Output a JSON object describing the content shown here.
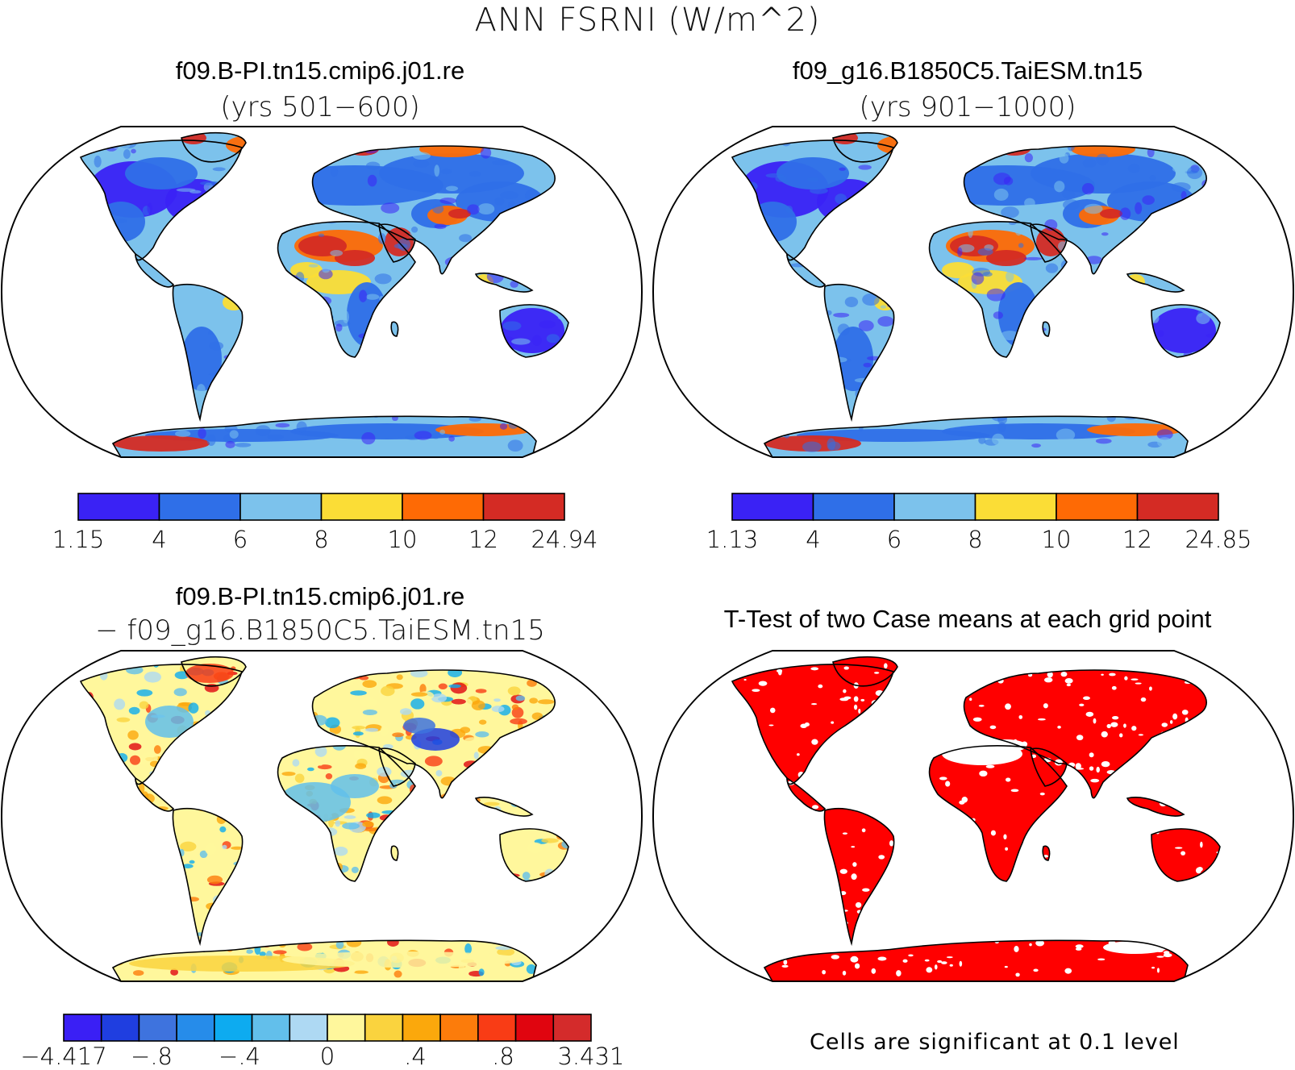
{
  "title": "ANN FSRNI (W/m^2)",
  "panels": [
    {
      "id": "case1",
      "title": "f09.B-PI.tn15.cmip6.j01.re",
      "subtitle": "(yrs 501−600)"
    },
    {
      "id": "case2",
      "title": "f09_g16.B1850C5.TaiESM.tn15",
      "subtitle": "(yrs 901−1000)"
    },
    {
      "id": "diff",
      "title": "f09.B-PI.tn15.cmip6.j01.re",
      "subtitle": "− f09_g16.B1850C5.TaiESM.tn15"
    },
    {
      "id": "ttest",
      "title": "T-Test of two Case means at each grid point",
      "subtitle": ""
    }
  ],
  "colorbars": [
    {
      "id": "cb1",
      "labels": [
        "1.15",
        "4",
        "6",
        "8",
        "10",
        "12",
        "24.94"
      ],
      "colors": [
        "#3a22f5",
        "#2f6fe8",
        "#7cc2ec",
        "#fbdd36",
        "#fe6a05",
        "#d42b24"
      ]
    },
    {
      "id": "cb2",
      "labels": [
        "1.13",
        "4",
        "6",
        "8",
        "10",
        "12",
        "24.85"
      ],
      "colors": [
        "#3a22f5",
        "#2f6fe8",
        "#7cc2ec",
        "#fbdd36",
        "#fe6a05",
        "#d42b24"
      ]
    },
    {
      "id": "cb3",
      "labels": [
        "−4.417",
        "−.8",
        "−.4",
        "0",
        ".4",
        ".8",
        "3.431"
      ],
      "colors": [
        "#3a1ff5",
        "#1f3ee0",
        "#3e73de",
        "#268cea",
        "#0dabf0",
        "#62bfeb",
        "#aed9f3",
        "#fff79c",
        "#fad33e",
        "#fba80c",
        "#fc7c0b",
        "#f93c15",
        "#e0050f",
        "#d42b2b"
      ]
    }
  ],
  "significance_note": "Cells are significant at 0.1 level",
  "ttest_color": "#ff0000"
}
